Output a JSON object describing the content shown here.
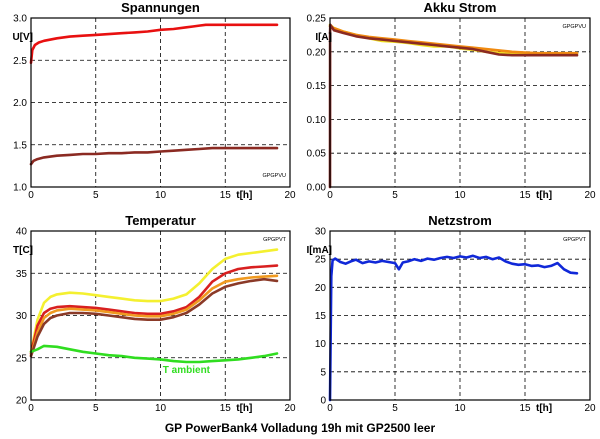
{
  "caption": "GP PowerBank4 Volladung 19h mit GP2500 leer",
  "chart_data": [
    {
      "type": "line",
      "title": "Spannungen",
      "ylabel": "U[V]",
      "xlabel": "t[h]",
      "tag": "GPGPVU",
      "xlim": [
        0,
        20
      ],
      "ylim": [
        1.0,
        3.0
      ],
      "xticks": [
        0,
        5,
        10,
        15,
        20
      ],
      "yticks": [
        1.0,
        1.5,
        2.0,
        2.5,
        3.0
      ],
      "ytick_labels": [
        "1.0",
        "1.5",
        "2.0",
        "2.5",
        "3.0"
      ],
      "grid": true,
      "series": [
        {
          "color": "#e81010",
          "x": [
            0,
            0.1,
            0.3,
            0.6,
            1,
            2,
            3,
            4,
            5,
            6,
            7,
            8,
            9,
            10,
            11,
            12,
            12.5,
            13,
            13.5,
            14,
            15,
            16,
            17,
            18,
            19
          ],
          "y": [
            2.47,
            2.62,
            2.68,
            2.71,
            2.73,
            2.76,
            2.78,
            2.79,
            2.8,
            2.81,
            2.82,
            2.83,
            2.84,
            2.86,
            2.87,
            2.89,
            2.9,
            2.91,
            2.92,
            2.92,
            2.92,
            2.92,
            2.92,
            2.92,
            2.92
          ]
        },
        {
          "color": "#8b2a22",
          "x": [
            0,
            0.2,
            0.5,
            1,
            2,
            3,
            4,
            5,
            6,
            7,
            8,
            9,
            10,
            11,
            12,
            13,
            14,
            15,
            16,
            17,
            18,
            19
          ],
          "y": [
            1.27,
            1.31,
            1.33,
            1.35,
            1.37,
            1.38,
            1.39,
            1.39,
            1.4,
            1.4,
            1.41,
            1.41,
            1.42,
            1.43,
            1.44,
            1.45,
            1.46,
            1.46,
            1.46,
            1.46,
            1.46,
            1.46
          ]
        }
      ]
    },
    {
      "type": "line",
      "title": "Akku Strom",
      "ylabel": "I[A]",
      "xlabel": "t[h]",
      "tag": "GPGPVU",
      "xlim": [
        0,
        20
      ],
      "ylim": [
        0,
        0.25
      ],
      "xticks": [
        0,
        5,
        10,
        15,
        20
      ],
      "yticks": [
        0,
        0.05,
        0.1,
        0.15,
        0.2,
        0.25
      ],
      "ytick_labels": [
        "0.00",
        "0.05",
        "0.10",
        "0.15",
        "0.20",
        "0.25"
      ],
      "grid": true,
      "series": [
        {
          "color": "#f0e020",
          "x": [
            0,
            0.3,
            1,
            2,
            3,
            4,
            5,
            6,
            7,
            8,
            9,
            10,
            11,
            12,
            13,
            14,
            15,
            16,
            17,
            18,
            19
          ],
          "y": [
            0.24,
            0.235,
            0.23,
            0.225,
            0.22,
            0.216,
            0.215,
            0.213,
            0.21,
            0.208,
            0.208,
            0.205,
            0.203,
            0.2,
            0.198,
            0.197,
            0.197,
            0.197,
            0.197,
            0.197,
            0.197
          ]
        },
        {
          "color": "#f08a10",
          "x": [
            0,
            0.3,
            1,
            2,
            3,
            4,
            5,
            6,
            7,
            8,
            9,
            10,
            11,
            12,
            13,
            14,
            15,
            16,
            17,
            18,
            19
          ],
          "y": [
            0.238,
            0.235,
            0.23,
            0.225,
            0.222,
            0.22,
            0.218,
            0.216,
            0.214,
            0.212,
            0.21,
            0.208,
            0.206,
            0.204,
            0.202,
            0.2,
            0.199,
            0.198,
            0.198,
            0.198,
            0.198
          ]
        },
        {
          "color": "#8b2a22",
          "x": [
            0,
            0.01,
            0.02,
            0.3,
            1,
            2,
            3,
            4,
            5,
            6,
            7,
            8,
            9,
            10,
            11,
            12,
            13,
            14,
            15,
            16,
            17,
            18,
            19
          ],
          "y": [
            0,
            0.23,
            0.24,
            0.232,
            0.228,
            0.223,
            0.22,
            0.218,
            0.216,
            0.214,
            0.212,
            0.21,
            0.208,
            0.206,
            0.204,
            0.2,
            0.196,
            0.195,
            0.195,
            0.195,
            0.195,
            0.195,
            0.195
          ]
        }
      ]
    },
    {
      "type": "line",
      "title": "Temperatur",
      "ylabel": "T[C]",
      "xlabel": "t[h]",
      "tag": "GPGPVT",
      "xlim": [
        0,
        20
      ],
      "ylim": [
        20,
        40
      ],
      "xticks": [
        0,
        5,
        10,
        15,
        20
      ],
      "yticks": [
        20,
        25,
        30,
        35,
        40
      ],
      "ytick_labels": [
        "20",
        "25",
        "30",
        "35",
        "40"
      ],
      "grid": true,
      "annotation": {
        "text": "T ambient",
        "x": 12,
        "y": 23.2,
        "color": "#30dd20"
      },
      "series": [
        {
          "color": "#f4f030",
          "x": [
            0,
            0.5,
            1,
            1.5,
            2,
            3,
            4,
            5,
            6,
            7,
            8,
            9,
            10,
            11,
            12,
            13,
            14,
            15,
            16,
            17,
            18,
            19
          ],
          "y": [
            25.7,
            29.5,
            31.5,
            32.2,
            32.5,
            32.7,
            32.6,
            32.4,
            32.2,
            32.0,
            31.8,
            31.7,
            31.7,
            32.0,
            32.5,
            33.8,
            35.5,
            36.7,
            37.2,
            37.4,
            37.6,
            37.8
          ]
        },
        {
          "color": "#d82020",
          "x": [
            0,
            0.5,
            1,
            1.5,
            2,
            3,
            4,
            5,
            6,
            7,
            8,
            9,
            10,
            11,
            12,
            13,
            14,
            15,
            16,
            17,
            18,
            19
          ],
          "y": [
            25.5,
            28.8,
            30.3,
            30.8,
            31.0,
            31.1,
            31.0,
            30.9,
            30.7,
            30.5,
            30.3,
            30.2,
            30.2,
            30.5,
            31.0,
            32.2,
            34.0,
            35.0,
            35.5,
            35.7,
            35.8,
            35.9
          ]
        },
        {
          "color": "#f09a20",
          "x": [
            0,
            0.5,
            1,
            1.5,
            2,
            3,
            4,
            5,
            6,
            7,
            8,
            9,
            10,
            11,
            12,
            13,
            14,
            15,
            16,
            17,
            18,
            19
          ],
          "y": [
            25.3,
            28.0,
            29.7,
            30.3,
            30.6,
            30.8,
            30.7,
            30.6,
            30.4,
            30.2,
            30.0,
            29.9,
            29.9,
            30.2,
            30.7,
            31.8,
            33.2,
            34.0,
            34.3,
            34.5,
            34.6,
            34.7
          ]
        },
        {
          "color": "#8b3a28",
          "x": [
            0,
            0.5,
            1,
            1.5,
            2,
            3,
            4,
            5,
            6,
            7,
            8,
            9,
            10,
            11,
            12,
            13,
            14,
            15,
            16,
            17,
            18,
            19
          ],
          "y": [
            25.2,
            27.5,
            29.0,
            29.7,
            30.0,
            30.3,
            30.3,
            30.2,
            30.0,
            29.8,
            29.6,
            29.5,
            29.5,
            29.8,
            30.3,
            31.3,
            32.6,
            33.4,
            33.8,
            34.1,
            34.3,
            34.1
          ]
        },
        {
          "color": "#30dd20",
          "x": [
            0,
            0.5,
            1,
            2,
            3,
            4,
            5,
            6,
            7,
            8,
            9,
            10,
            11,
            12,
            13,
            14,
            15,
            16,
            17,
            18,
            19
          ],
          "y": [
            25.7,
            26.0,
            26.4,
            26.3,
            26.0,
            25.7,
            25.5,
            25.3,
            25.2,
            25.0,
            24.9,
            24.8,
            24.6,
            24.5,
            24.5,
            24.6,
            24.7,
            24.8,
            25.0,
            25.2,
            25.5
          ]
        }
      ]
    },
    {
      "type": "line",
      "title": "Netzstrom",
      "ylabel": "I[mA]",
      "xlabel": "t[h]",
      "tag": "GPGPVT",
      "xlim": [
        0,
        20
      ],
      "ylim": [
        0,
        30
      ],
      "xticks": [
        0,
        5,
        10,
        15,
        20
      ],
      "yticks": [
        0,
        5,
        10,
        15,
        20,
        25,
        30
      ],
      "ytick_labels": [
        "0",
        "5",
        "10",
        "15",
        "20",
        "25",
        "30"
      ],
      "grid": true,
      "series": [
        {
          "color": "#1028d8",
          "x": [
            0,
            0.1,
            0.2,
            0.4,
            0.8,
            1.2,
            1.6,
            2,
            2.5,
            3,
            3.5,
            4,
            4.5,
            5,
            5.3,
            5.6,
            6,
            6.5,
            7,
            7.5,
            8,
            8.5,
            9,
            9.5,
            10,
            10.5,
            11,
            11.5,
            12,
            12.5,
            13,
            13.5,
            14,
            14.5,
            15,
            15.5,
            16,
            16.5,
            17,
            17.5,
            18,
            18.5,
            19
          ],
          "y": [
            0,
            22,
            24.8,
            25.1,
            24.5,
            24.2,
            24.6,
            24.9,
            24.3,
            24.6,
            24.4,
            24.7,
            24.5,
            24.3,
            23.2,
            24.4,
            24.6,
            25.0,
            24.7,
            25.1,
            24.9,
            25.2,
            25.4,
            25.2,
            25.5,
            25.3,
            25.6,
            25.2,
            25.4,
            25.0,
            25.3,
            24.6,
            24.2,
            24.0,
            24.1,
            23.8,
            23.9,
            23.6,
            23.8,
            24.3,
            23.2,
            22.6,
            22.5
          ]
        }
      ]
    }
  ]
}
